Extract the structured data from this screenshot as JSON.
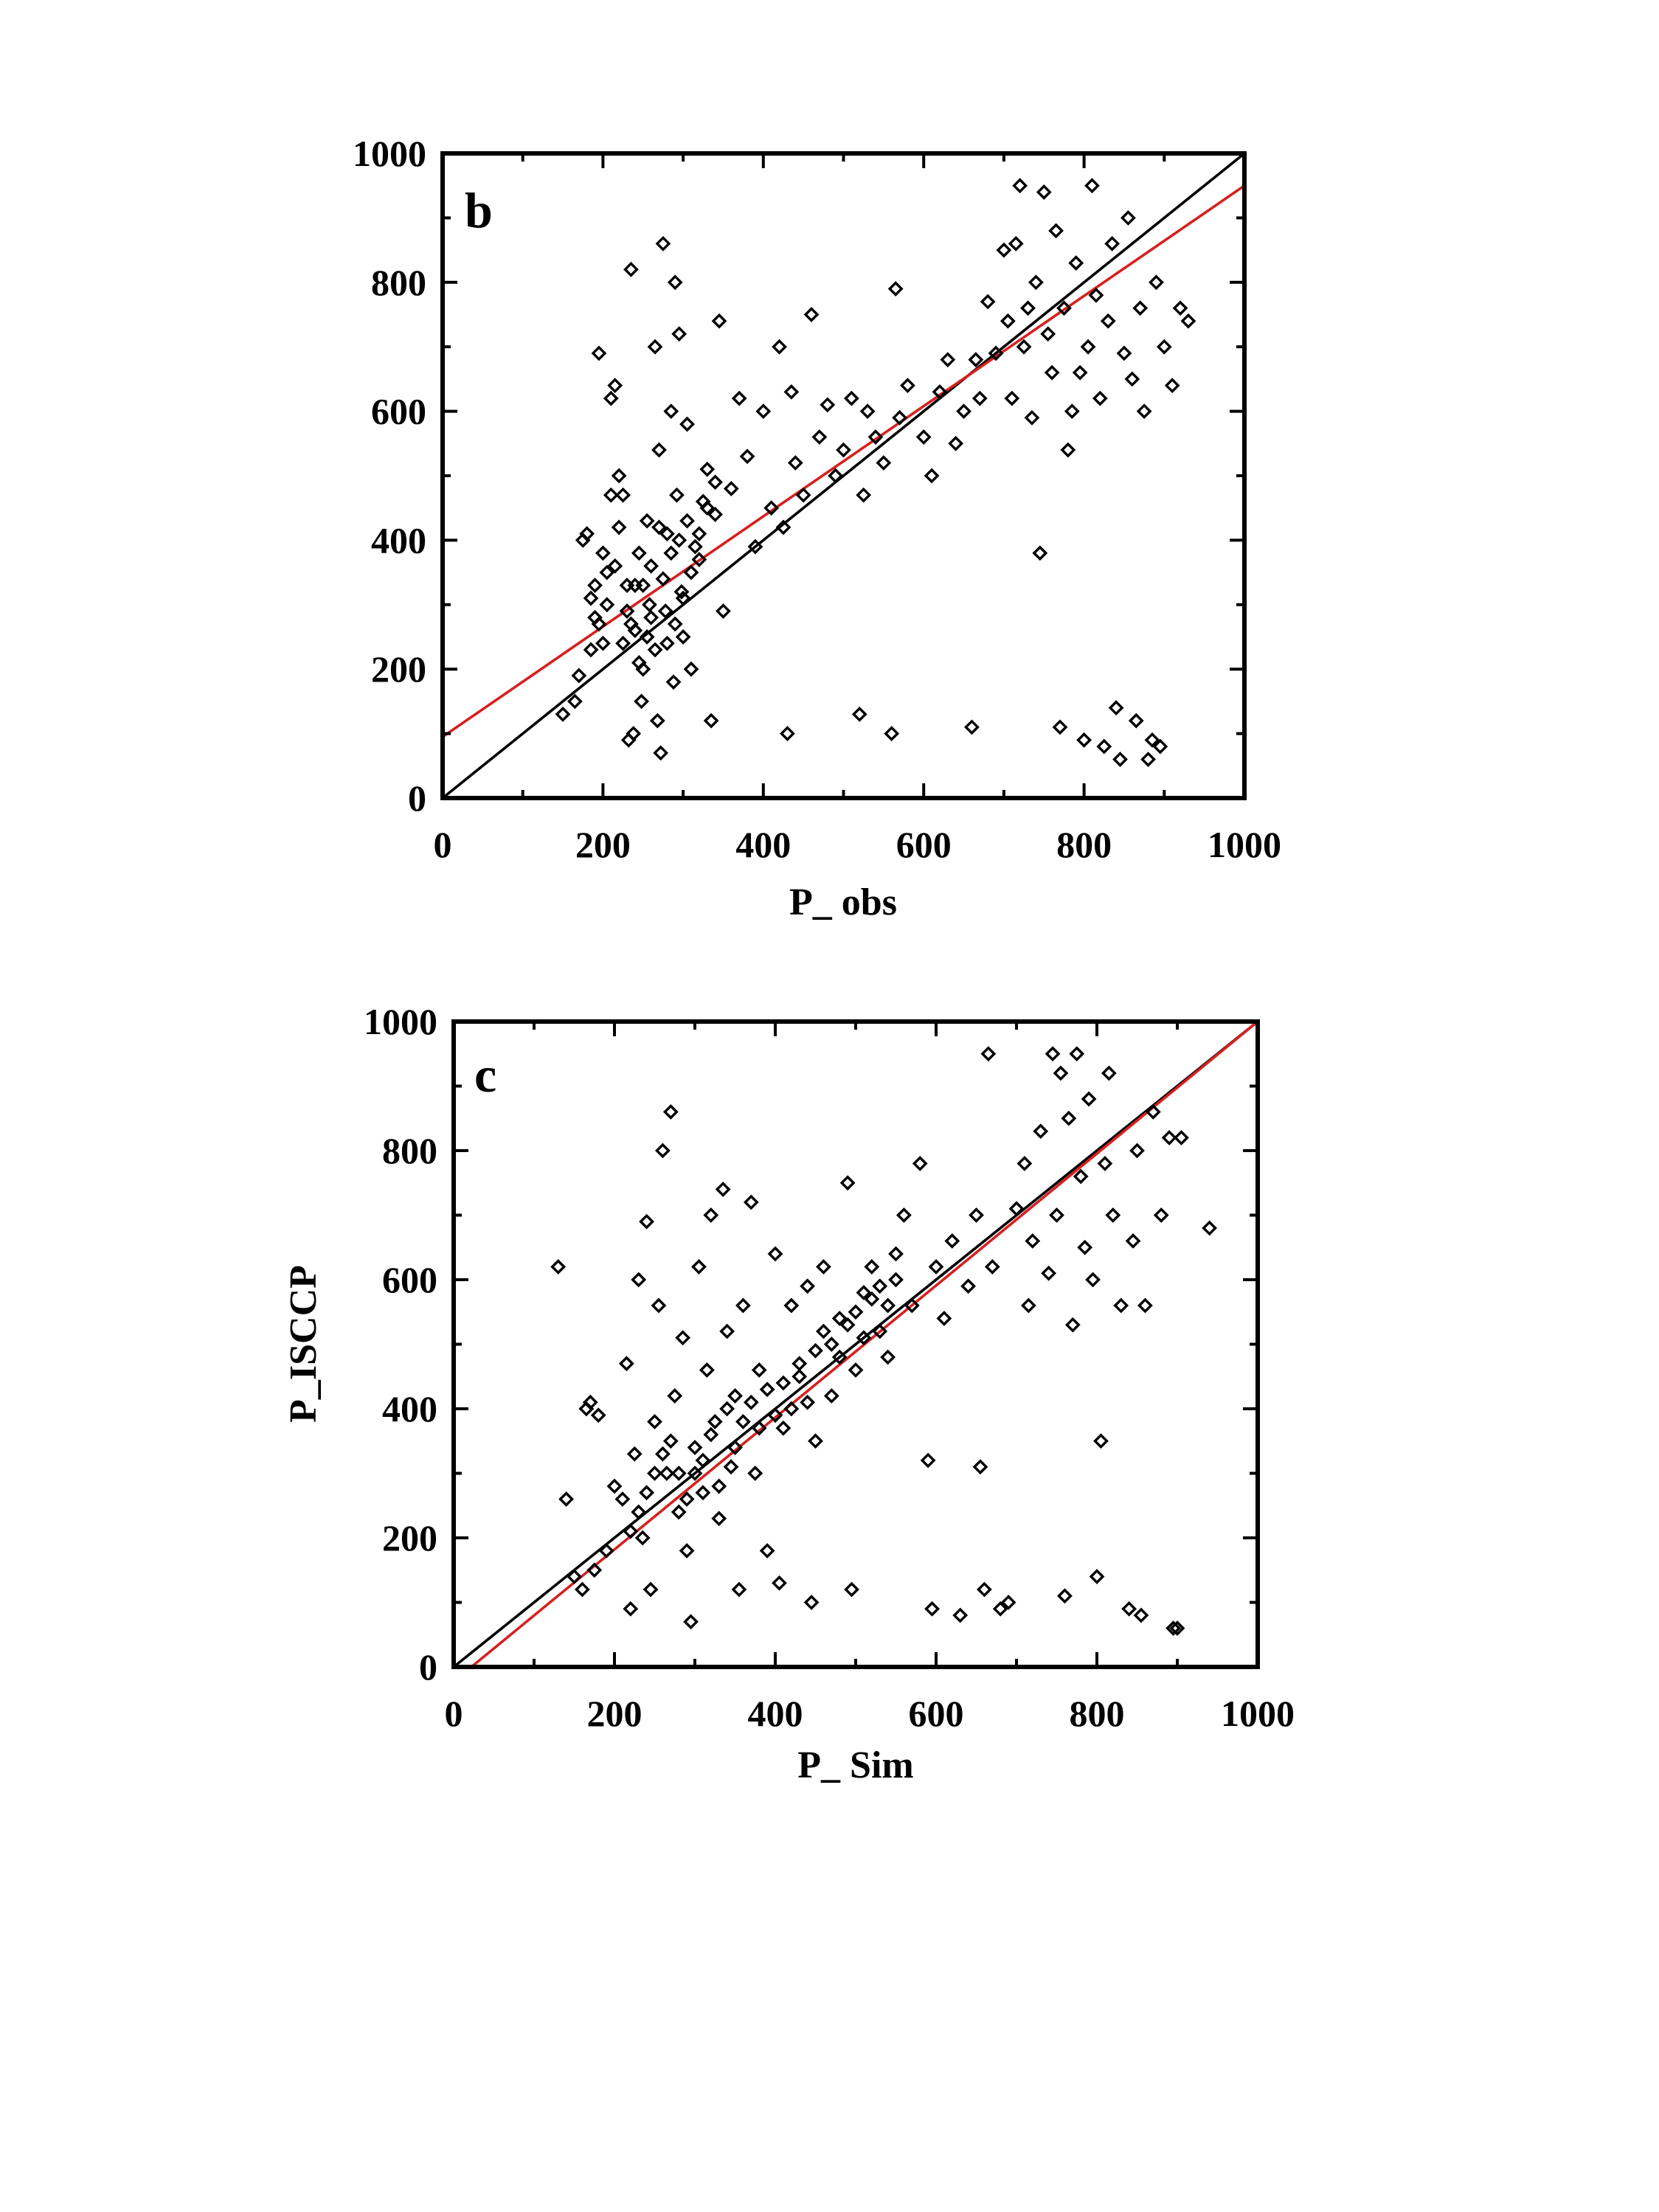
{
  "chart_data": [
    {
      "type": "scatter",
      "panel_label": "b",
      "xlabel": "P_ obs",
      "ylabel": "",
      "xlim": [
        0,
        1000
      ],
      "ylim": [
        0,
        1000
      ],
      "xticks": [
        0,
        200,
        400,
        600,
        800,
        1000
      ],
      "yticks": [
        0,
        200,
        400,
        600,
        800,
        1000
      ],
      "grid": false,
      "marker": "diamond",
      "lines": [
        {
          "role": "one-to-one",
          "color": "#000000",
          "x": [
            0,
            1000
          ],
          "y": [
            0,
            1000
          ]
        },
        {
          "role": "regression",
          "color": "#d62020",
          "x": [
            0,
            1000
          ],
          "y": [
            95,
            950
          ]
        }
      ],
      "points": [
        [
          150,
          130
        ],
        [
          165,
          150
        ],
        [
          170,
          190
        ],
        [
          175,
          400
        ],
        [
          180,
          410
        ],
        [
          185,
          310
        ],
        [
          190,
          280
        ],
        [
          195,
          690
        ],
        [
          200,
          240
        ],
        [
          205,
          350
        ],
        [
          210,
          620
        ],
        [
          215,
          640
        ],
        [
          220,
          500
        ],
        [
          225,
          470
        ],
        [
          230,
          330
        ],
        [
          232,
          90
        ],
        [
          235,
          820
        ],
        [
          238,
          100
        ],
        [
          240,
          260
        ],
        [
          245,
          380
        ],
        [
          248,
          150
        ],
        [
          250,
          200
        ],
        [
          255,
          430
        ],
        [
          258,
          300
        ],
        [
          260,
          360
        ],
        [
          265,
          700
        ],
        [
          268,
          120
        ],
        [
          270,
          540
        ],
        [
          272,
          70
        ],
        [
          275,
          860
        ],
        [
          278,
          290
        ],
        [
          280,
          410
        ],
        [
          285,
          600
        ],
        [
          288,
          180
        ],
        [
          290,
          800
        ],
        [
          292,
          470
        ],
        [
          295,
          720
        ],
        [
          298,
          320
        ],
        [
          300,
          250
        ],
        [
          305,
          580
        ],
        [
          310,
          200
        ],
        [
          320,
          370
        ],
        [
          330,
          510
        ],
        [
          335,
          120
        ],
        [
          340,
          440
        ],
        [
          345,
          740
        ],
        [
          350,
          290
        ],
        [
          360,
          480
        ],
        [
          370,
          620
        ],
        [
          380,
          530
        ],
        [
          390,
          390
        ],
        [
          400,
          600
        ],
        [
          410,
          450
        ],
        [
          420,
          700
        ],
        [
          425,
          420
        ],
        [
          430,
          100
        ],
        [
          435,
          630
        ],
        [
          440,
          520
        ],
        [
          450,
          470
        ],
        [
          460,
          750
        ],
        [
          470,
          560
        ],
        [
          480,
          610
        ],
        [
          490,
          500
        ],
        [
          500,
          540
        ],
        [
          510,
          620
        ],
        [
          520,
          130
        ],
        [
          525,
          470
        ],
        [
          530,
          600
        ],
        [
          540,
          560
        ],
        [
          550,
          520
        ],
        [
          560,
          100
        ],
        [
          565,
          790
        ],
        [
          570,
          590
        ],
        [
          580,
          640
        ],
        [
          600,
          560
        ],
        [
          610,
          500
        ],
        [
          620,
          630
        ],
        [
          630,
          680
        ],
        [
          640,
          550
        ],
        [
          650,
          600
        ],
        [
          660,
          110
        ],
        [
          665,
          680
        ],
        [
          670,
          620
        ],
        [
          680,
          770
        ],
        [
          690,
          690
        ],
        [
          700,
          850
        ],
        [
          705,
          740
        ],
        [
          710,
          620
        ],
        [
          715,
          860
        ],
        [
          720,
          950
        ],
        [
          725,
          700
        ],
        [
          730,
          760
        ],
        [
          735,
          590
        ],
        [
          740,
          800
        ],
        [
          745,
          380
        ],
        [
          750,
          940
        ],
        [
          755,
          720
        ],
        [
          760,
          660
        ],
        [
          765,
          880
        ],
        [
          770,
          110
        ],
        [
          775,
          760
        ],
        [
          780,
          540
        ],
        [
          785,
          600
        ],
        [
          790,
          830
        ],
        [
          795,
          660
        ],
        [
          800,
          90
        ],
        [
          805,
          700
        ],
        [
          810,
          950
        ],
        [
          815,
          780
        ],
        [
          820,
          620
        ],
        [
          825,
          80
        ],
        [
          830,
          740
        ],
        [
          835,
          860
        ],
        [
          840,
          140
        ],
        [
          845,
          60
        ],
        [
          850,
          690
        ],
        [
          855,
          900
        ],
        [
          860,
          650
        ],
        [
          865,
          120
        ],
        [
          870,
          760
        ],
        [
          875,
          600
        ],
        [
          880,
          60
        ],
        [
          885,
          90
        ],
        [
          890,
          800
        ],
        [
          895,
          80
        ],
        [
          900,
          700
        ],
        [
          910,
          640
        ],
        [
          920,
          760
        ],
        [
          930,
          740
        ],
        [
          250,
          330
        ],
        [
          260,
          280
        ],
        [
          270,
          420
        ],
        [
          240,
          330
        ],
        [
          230,
          290
        ],
        [
          225,
          240
        ],
        [
          215,
          360
        ],
        [
          205,
          300
        ],
        [
          195,
          270
        ],
        [
          185,
          230
        ],
        [
          275,
          340
        ],
        [
          285,
          380
        ],
        [
          295,
          400
        ],
        [
          305,
          430
        ],
        [
          315,
          390
        ],
        [
          325,
          460
        ],
        [
          255,
          250
        ],
        [
          245,
          210
        ],
        [
          265,
          230
        ],
        [
          235,
          270
        ],
        [
          220,
          420
        ],
        [
          210,
          470
        ],
        [
          200,
          380
        ],
        [
          190,
          330
        ],
        [
          280,
          240
        ],
        [
          290,
          270
        ],
        [
          300,
          310
        ],
        [
          310,
          350
        ],
        [
          320,
          410
        ],
        [
          330,
          450
        ],
        [
          340,
          490
        ]
      ]
    },
    {
      "type": "scatter",
      "panel_label": "c",
      "xlabel": "P_ Sim",
      "ylabel": "P_ISCCP",
      "xlim": [
        0,
        1000
      ],
      "ylim": [
        0,
        1000
      ],
      "xticks": [
        0,
        200,
        400,
        600,
        800,
        1000
      ],
      "yticks": [
        0,
        200,
        400,
        600,
        800,
        1000
      ],
      "grid": false,
      "marker": "diamond",
      "lines": [
        {
          "role": "one-to-one",
          "color": "#000000",
          "x": [
            0,
            1000
          ],
          "y": [
            0,
            1000
          ]
        },
        {
          "role": "regression",
          "color": "#d62020",
          "x": [
            22,
            1000
          ],
          "y": [
            0,
            1000
          ]
        }
      ],
      "points": [
        [
          130,
          620
        ],
        [
          140,
          260
        ],
        [
          150,
          140
        ],
        [
          160,
          120
        ],
        [
          165,
          400
        ],
        [
          170,
          410
        ],
        [
          175,
          150
        ],
        [
          180,
          390
        ],
        [
          190,
          180
        ],
        [
          200,
          280
        ],
        [
          210,
          260
        ],
        [
          215,
          470
        ],
        [
          220,
          90
        ],
        [
          225,
          330
        ],
        [
          230,
          600
        ],
        [
          235,
          200
        ],
        [
          240,
          690
        ],
        [
          245,
          120
        ],
        [
          250,
          380
        ],
        [
          255,
          560
        ],
        [
          260,
          800
        ],
        [
          265,
          300
        ],
        [
          270,
          860
        ],
        [
          275,
          420
        ],
        [
          280,
          240
        ],
        [
          285,
          510
        ],
        [
          290,
          180
        ],
        [
          295,
          70
        ],
        [
          300,
          340
        ],
        [
          305,
          620
        ],
        [
          310,
          270
        ],
        [
          315,
          460
        ],
        [
          320,
          700
        ],
        [
          325,
          380
        ],
        [
          330,
          230
        ],
        [
          335,
          740
        ],
        [
          340,
          520
        ],
        [
          345,
          310
        ],
        [
          350,
          420
        ],
        [
          355,
          120
        ],
        [
          360,
          560
        ],
        [
          370,
          720
        ],
        [
          375,
          300
        ],
        [
          380,
          460
        ],
        [
          390,
          180
        ],
        [
          400,
          640
        ],
        [
          405,
          130
        ],
        [
          410,
          370
        ],
        [
          420,
          560
        ],
        [
          430,
          450
        ],
        [
          440,
          590
        ],
        [
          445,
          100
        ],
        [
          450,
          350
        ],
        [
          460,
          620
        ],
        [
          470,
          420
        ],
        [
          480,
          540
        ],
        [
          490,
          750
        ],
        [
          495,
          120
        ],
        [
          500,
          460
        ],
        [
          510,
          580
        ],
        [
          520,
          620
        ],
        [
          530,
          520
        ],
        [
          540,
          480
        ],
        [
          550,
          640
        ],
        [
          560,
          700
        ],
        [
          570,
          560
        ],
        [
          580,
          780
        ],
        [
          590,
          320
        ],
        [
          595,
          90
        ],
        [
          600,
          620
        ],
        [
          610,
          540
        ],
        [
          620,
          660
        ],
        [
          630,
          80
        ],
        [
          640,
          590
        ],
        [
          650,
          700
        ],
        [
          655,
          310
        ],
        [
          660,
          120
        ],
        [
          665,
          950
        ],
        [
          670,
          620
        ],
        [
          680,
          90
        ],
        [
          690,
          100
        ],
        [
          700,
          710
        ],
        [
          710,
          780
        ],
        [
          715,
          560
        ],
        [
          720,
          660
        ],
        [
          730,
          830
        ],
        [
          740,
          610
        ],
        [
          745,
          950
        ],
        [
          750,
          700
        ],
        [
          755,
          920
        ],
        [
          760,
          110
        ],
        [
          765,
          850
        ],
        [
          770,
          530
        ],
        [
          775,
          950
        ],
        [
          780,
          760
        ],
        [
          785,
          650
        ],
        [
          790,
          880
        ],
        [
          795,
          600
        ],
        [
          800,
          140
        ],
        [
          805,
          350
        ],
        [
          810,
          780
        ],
        [
          815,
          920
        ],
        [
          820,
          700
        ],
        [
          830,
          560
        ],
        [
          840,
          90
        ],
        [
          845,
          660
        ],
        [
          850,
          800
        ],
        [
          855,
          80
        ],
        [
          860,
          560
        ],
        [
          870,
          860
        ],
        [
          880,
          700
        ],
        [
          890,
          820
        ],
        [
          895,
          60
        ],
        [
          900,
          60
        ],
        [
          905,
          820
        ],
        [
          940,
          680
        ],
        [
          300,
          300
        ],
        [
          310,
          320
        ],
        [
          320,
          360
        ],
        [
          330,
          280
        ],
        [
          340,
          400
        ],
        [
          350,
          340
        ],
        [
          290,
          260
        ],
        [
          280,
          300
        ],
        [
          270,
          350
        ],
        [
          260,
          330
        ],
        [
          250,
          300
        ],
        [
          240,
          270
        ],
        [
          230,
          240
        ],
        [
          220,
          210
        ],
        [
          360,
          380
        ],
        [
          370,
          410
        ],
        [
          380,
          370
        ],
        [
          390,
          430
        ],
        [
          400,
          390
        ],
        [
          410,
          440
        ],
        [
          420,
          400
        ],
        [
          430,
          470
        ],
        [
          440,
          410
        ],
        [
          450,
          490
        ],
        [
          460,
          520
        ],
        [
          470,
          500
        ],
        [
          480,
          480
        ],
        [
          490,
          530
        ],
        [
          500,
          550
        ],
        [
          510,
          510
        ],
        [
          520,
          570
        ],
        [
          530,
          590
        ],
        [
          540,
          560
        ],
        [
          550,
          600
        ]
      ]
    }
  ]
}
